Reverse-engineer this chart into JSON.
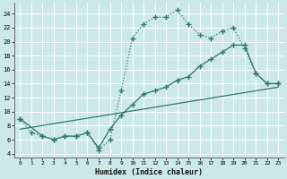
{
  "xlabel": "Humidex (Indice chaleur)",
  "background_color": "#cde8e8",
  "grid_color": "#ffffff",
  "line_color": "#2d7a6a",
  "xlim": [
    -0.5,
    23.5
  ],
  "ylim": [
    3.5,
    25.5
  ],
  "xticks": [
    0,
    1,
    2,
    3,
    4,
    5,
    6,
    7,
    8,
    9,
    10,
    11,
    12,
    13,
    14,
    15,
    16,
    17,
    18,
    19,
    20,
    21,
    22,
    23
  ],
  "yticks": [
    4,
    6,
    8,
    10,
    12,
    14,
    16,
    18,
    20,
    22,
    24
  ],
  "series1_x": [
    0,
    1,
    2,
    3,
    4,
    5,
    6,
    7,
    8,
    9,
    10,
    11,
    12,
    13,
    14,
    15,
    16,
    17,
    18,
    19,
    20,
    21,
    22,
    23
  ],
  "series1_y": [
    9,
    7,
    6.5,
    6,
    6.5,
    6.5,
    7.0,
    4.5,
    6.0,
    13.0,
    20.5,
    22.5,
    23.5,
    23.5,
    24.5,
    22.5,
    21.0,
    20.5,
    21.5,
    22.0,
    19.0,
    15.5,
    14.0,
    14.0
  ],
  "series2_x": [
    0,
    2,
    3,
    4,
    5,
    6,
    7,
    8,
    9,
    10,
    11,
    12,
    13,
    14,
    15,
    16,
    17,
    18,
    19,
    20,
    21,
    22,
    23
  ],
  "series2_y": [
    9,
    6.5,
    6.0,
    6.5,
    6.5,
    7.0,
    4.8,
    7.5,
    9.5,
    11.0,
    12.5,
    13.0,
    13.5,
    14.5,
    15.0,
    16.5,
    17.5,
    18.5,
    19.5,
    19.5,
    15.5,
    14.0,
    14.0
  ],
  "series3_x": [
    0,
    23
  ],
  "series3_y": [
    7.5,
    13.5
  ],
  "markersize": 3.5,
  "linewidth": 0.9
}
